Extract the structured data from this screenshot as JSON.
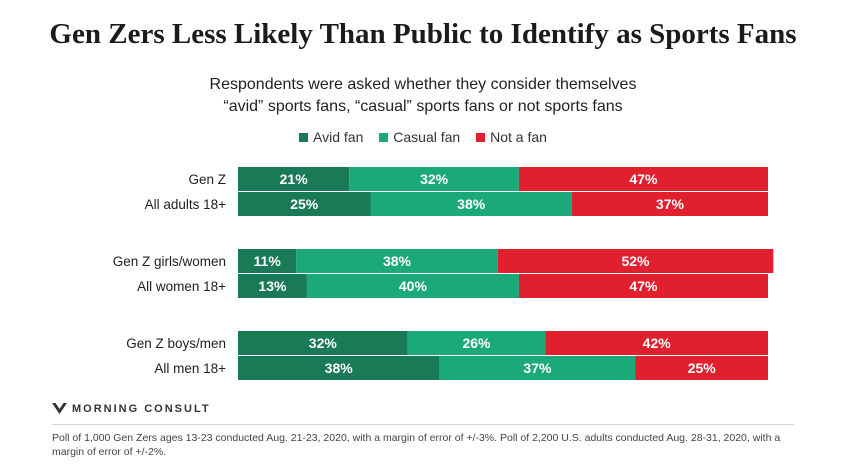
{
  "title": "Gen Zers Less Likely Than Public to Identify as Sports Fans",
  "subtitle_line1": "Respondents were asked whether they consider themselves",
  "subtitle_line2": "“avid” sports fans, “casual” sports fans or not sports fans",
  "brand": "MORNING CONSULT",
  "footnote": "Poll of 1,000 Gen Zers ages 13-23 conducted Aug. 21-23, 2020, with a margin of error of +/-3%. Poll of 2,200 U.S. adults conducted Aug. 28-31, 2020, with a margin of error of +/-2%.",
  "colors": {
    "avid": "#1a7a55",
    "casual": "#1ca97a",
    "not": "#e0202f"
  },
  "chart_data": {
    "type": "bar",
    "orientation": "horizontal",
    "stacked": true,
    "title": "Gen Zers Less Likely Than Public to Identify as Sports Fans",
    "xlim": [
      0,
      100
    ],
    "legend_position": "top",
    "categories": [
      "Gen Z",
      "All adults 18+",
      "Gen Z girls/women",
      "All women 18+",
      "Gen Z boys/men",
      "All men 18+"
    ],
    "groups": [
      [
        "Gen Z",
        "All adults 18+"
      ],
      [
        "Gen Z girls/women",
        "All women 18+"
      ],
      [
        "Gen Z boys/men",
        "All men 18+"
      ]
    ],
    "series": [
      {
        "name": "Avid fan",
        "values": [
          21,
          25,
          11,
          13,
          32,
          38
        ]
      },
      {
        "name": "Casual fan",
        "values": [
          32,
          38,
          38,
          40,
          26,
          37
        ]
      },
      {
        "name": "Not a fan",
        "values": [
          47,
          37,
          52,
          47,
          42,
          25
        ]
      }
    ]
  }
}
